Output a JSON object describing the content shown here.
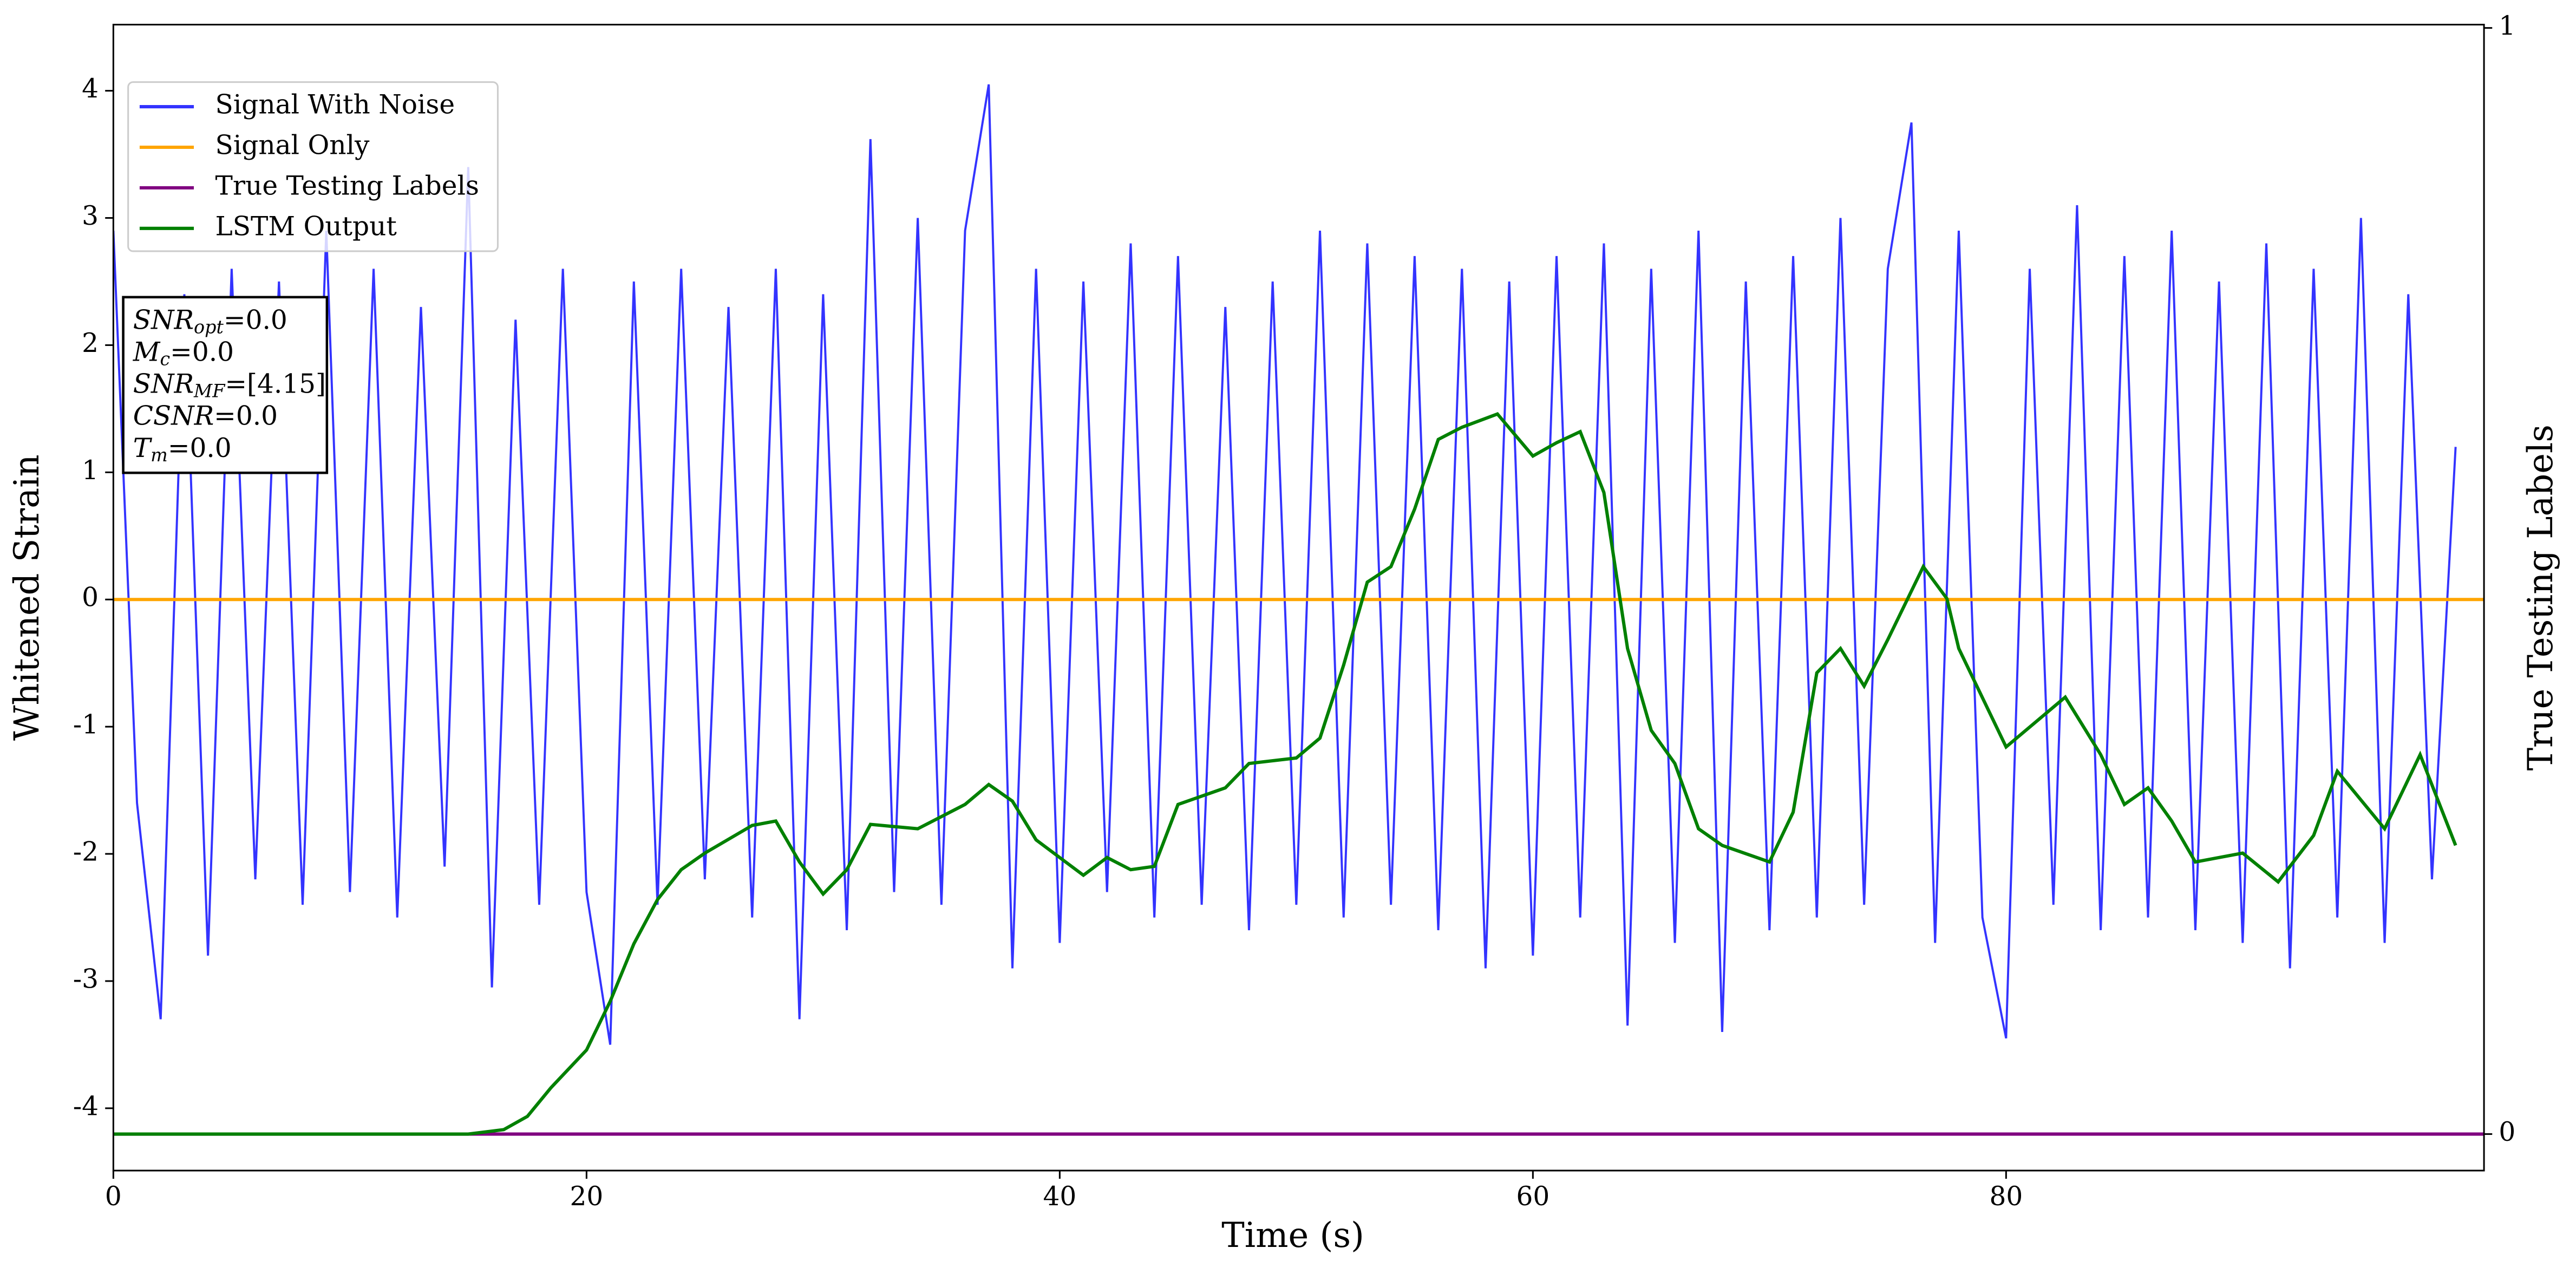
{
  "chart_data": {
    "type": "line",
    "xlabel": "Time (s)",
    "ylabel": "Whitened Strain",
    "y2label": "True Testing Labels",
    "xlim": [
      0,
      100.2
    ],
    "xticks": [
      0,
      20,
      40,
      60,
      80
    ],
    "ylim": [
      -4.49,
      4.52
    ],
    "yticks": [
      -4,
      -3,
      -2,
      -1,
      0,
      1,
      2,
      3,
      4
    ],
    "y2lim": [
      -0.033,
      1.003
    ],
    "y2ticks": [
      0,
      1
    ],
    "grid": false,
    "legend": "upper left",
    "series": [
      {
        "name": "Signal With Noise",
        "color": "#3333ff",
        "axis": "y",
        "x": [
          0,
          1,
          2,
          3,
          4,
          5,
          6,
          7,
          8,
          9,
          10,
          11,
          12,
          13,
          14,
          15,
          16,
          17,
          18,
          19,
          20,
          21,
          22,
          23,
          24,
          25,
          26,
          27,
          28,
          29,
          30,
          31,
          32,
          33,
          34,
          35,
          36,
          37,
          38,
          39,
          40,
          41,
          42,
          43,
          44,
          45,
          46,
          47,
          48,
          49,
          50,
          51,
          52,
          53,
          54,
          55,
          56,
          57,
          58,
          59,
          60,
          61,
          62,
          63,
          64,
          65,
          66,
          67,
          68,
          69,
          70,
          71,
          72,
          73,
          74,
          75,
          76,
          77,
          78,
          79,
          80,
          81,
          82,
          83,
          84,
          85,
          86,
          87,
          88,
          89,
          90,
          91,
          92,
          93,
          94,
          95,
          96,
          97,
          98,
          99
        ],
        "values": [
          2.9,
          -1.6,
          -3.3,
          2.4,
          -2.8,
          2.6,
          -2.2,
          2.5,
          -2.4,
          2.9,
          -2.3,
          2.6,
          -2.5,
          2.3,
          -2.1,
          3.4,
          -3.05,
          2.2,
          -2.4,
          2.6,
          -2.3,
          -3.5,
          2.5,
          -2.4,
          2.6,
          -2.2,
          2.3,
          -2.5,
          2.6,
          -3.3,
          2.4,
          -2.6,
          3.62,
          -2.3,
          3.0,
          -2.4,
          2.9,
          4.05,
          -2.9,
          2.6,
          -2.7,
          2.5,
          -2.3,
          2.8,
          -2.5,
          2.7,
          -2.4,
          2.3,
          -2.6,
          2.5,
          -2.4,
          2.9,
          -2.5,
          2.8,
          -2.4,
          2.7,
          -2.6,
          2.6,
          -2.9,
          2.5,
          -2.8,
          2.7,
          -2.5,
          2.8,
          -3.35,
          2.6,
          -2.7,
          2.9,
          -3.4,
          2.5,
          -2.6,
          2.7,
          -2.5,
          3.0,
          -2.4,
          2.6,
          3.75,
          -2.7,
          2.9,
          -2.5,
          -3.45,
          2.6,
          -2.4,
          3.1,
          -2.6,
          2.7,
          -2.5,
          2.9,
          -2.6,
          2.5,
          -2.7,
          2.8,
          -2.9,
          2.6,
          -2.5,
          3.0,
          -2.7,
          2.4,
          -2.2,
          1.2
        ]
      },
      {
        "name": "Signal Only",
        "color": "#ffa500",
        "axis": "y",
        "x": [
          0,
          100.2
        ],
        "values": [
          0,
          0
        ]
      },
      {
        "name": "True Testing Labels",
        "color": "#800080",
        "axis": "y2",
        "x": [
          0,
          100.2
        ],
        "values": [
          0,
          0
        ]
      },
      {
        "name": "LSTM Output",
        "color": "#008000",
        "axis": "y2",
        "x": [
          0,
          15,
          16.5,
          17.5,
          18.5,
          20,
          21,
          22,
          23,
          24,
          25,
          27,
          28,
          29,
          30,
          31,
          32,
          34,
          36,
          37,
          38,
          39,
          41,
          42,
          43,
          44,
          45,
          47,
          48,
          50,
          51,
          52,
          53,
          54,
          55,
          56,
          57,
          58.5,
          60,
          61,
          62,
          63,
          64,
          65,
          66,
          67,
          68,
          70,
          71,
          72,
          73,
          74,
          75,
          76.5,
          77.5,
          78,
          80,
          82.5,
          84,
          85,
          86,
          87,
          88,
          90,
          91.5,
          93,
          94,
          96,
          97.5,
          99
        ],
        "values": [
          0,
          0,
          0.004,
          0.016,
          0.042,
          0.076,
          0.12,
          0.172,
          0.212,
          0.239,
          0.254,
          0.279,
          0.283,
          0.246,
          0.217,
          0.239,
          0.28,
          0.276,
          0.298,
          0.316,
          0.301,
          0.266,
          0.234,
          0.25,
          0.239,
          0.242,
          0.298,
          0.313,
          0.335,
          0.34,
          0.358,
          0.424,
          0.499,
          0.513,
          0.565,
          0.628,
          0.639,
          0.651,
          0.613,
          0.625,
          0.635,
          0.58,
          0.439,
          0.365,
          0.335,
          0.276,
          0.261,
          0.246,
          0.291,
          0.417,
          0.439,
          0.405,
          0.447,
          0.513,
          0.484,
          0.439,
          0.35,
          0.395,
          0.343,
          0.298,
          0.313,
          0.283,
          0.246,
          0.254,
          0.228,
          0.27,
          0.328,
          0.276,
          0.343,
          0.261
        ]
      }
    ],
    "annotations": [
      {
        "base": "SNR",
        "sub": "opt",
        "text": "=0.0"
      },
      {
        "base": "M",
        "sub": "c",
        "text": "=0.0"
      },
      {
        "base": "SNR",
        "sub": "MF",
        "text": "=[4.15]"
      },
      {
        "base": "CSNR",
        "sub": "",
        "text": "=0.0"
      },
      {
        "base": "T",
        "sub": "m",
        "text": "=0.0"
      }
    ]
  }
}
